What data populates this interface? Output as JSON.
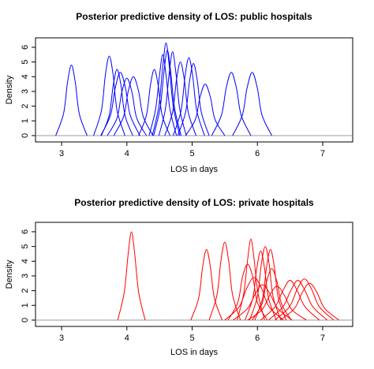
{
  "chart_data": [
    {
      "type": "line",
      "title": "Posterior predictive density of LOS: public hospitals",
      "x_label": "LOS in days",
      "y_label": "Density",
      "xlim": [
        2.6,
        7.46
      ],
      "ylim": [
        -0.43,
        6.64
      ],
      "xticks": [
        3,
        4,
        5,
        6,
        7
      ],
      "yticks": [
        0,
        1,
        2,
        3,
        4,
        5,
        6
      ],
      "series": [
        {
          "color": "#0000ff",
          "x": [
            2.91,
            3.03,
            3.09,
            3.15,
            3.21,
            3.27,
            3.39
          ],
          "values": [
            0,
            1.5,
            3.6,
            4.8,
            3.6,
            1.5,
            0
          ]
        },
        {
          "color": "#0000ff",
          "x": [
            3.49,
            3.61,
            3.67,
            3.73,
            3.79,
            3.85,
            3.97
          ],
          "values": [
            0,
            1.7,
            4.1,
            5.4,
            4.1,
            1.7,
            0
          ]
        },
        {
          "color": "#0000ff",
          "x": [
            3.61,
            3.73,
            3.79,
            3.85,
            3.91,
            3.97,
            4.09
          ],
          "values": [
            0,
            1.4,
            3.4,
            4.5,
            3.4,
            1.4,
            0
          ]
        },
        {
          "color": "#0000ff",
          "x": [
            3.6,
            3.75,
            3.82,
            3.9,
            3.98,
            4.05,
            4.2
          ],
          "values": [
            0,
            1.4,
            3.2,
            4.3,
            3.2,
            1.4,
            0
          ]
        },
        {
          "color": "#0000ff",
          "x": [
            3.7,
            3.85,
            3.92,
            4.0,
            4.08,
            4.15,
            4.3
          ],
          "values": [
            0,
            1.2,
            2.9,
            3.9,
            2.9,
            1.2,
            0
          ]
        },
        {
          "color": "#0000ff",
          "x": [
            3.8,
            3.95,
            4.02,
            4.1,
            4.18,
            4.25,
            4.4
          ],
          "values": [
            0,
            1.3,
            3,
            4,
            3,
            1.3,
            0
          ]
        },
        {
          "color": "#0000ff",
          "x": [
            4.18,
            4.3,
            4.36,
            4.42,
            4.48,
            4.54,
            4.66
          ],
          "values": [
            0,
            1.4,
            3.4,
            4.5,
            3.4,
            1.4,
            0
          ]
        },
        {
          "color": "#0000ff",
          "x": [
            4.34,
            4.44,
            4.5,
            4.55,
            4.6,
            4.66,
            4.76
          ],
          "values": [
            0,
            1.8,
            4.1,
            5.5,
            4.1,
            1.8,
            0
          ]
        },
        {
          "color": "#0000ff",
          "x": [
            4.39,
            4.49,
            4.55,
            4.6,
            4.65,
            4.71,
            4.81
          ],
          "values": [
            0,
            2,
            4.7,
            6.3,
            4.7,
            2,
            0
          ]
        },
        {
          "color": "#0000ff",
          "x": [
            4.41,
            4.51,
            4.57,
            4.62,
            4.67,
            4.73,
            4.83
          ],
          "values": [
            0,
            1.9,
            4.4,
            5.8,
            4.4,
            1.9,
            0
          ]
        },
        {
          "color": "#0000ff",
          "x": [
            4.49,
            4.59,
            4.65,
            4.7,
            4.75,
            4.81,
            4.91
          ],
          "values": [
            0,
            1.8,
            4.3,
            5.7,
            4.3,
            1.8,
            0
          ]
        },
        {
          "color": "#0000ff",
          "x": [
            4.58,
            4.7,
            4.76,
            4.82,
            4.88,
            4.94,
            5.06
          ],
          "values": [
            0,
            1.6,
            3.8,
            5,
            3.8,
            1.6,
            0
          ]
        },
        {
          "color": "#0000ff",
          "x": [
            4.71,
            4.83,
            4.89,
            4.95,
            5.01,
            5.07,
            5.19
          ],
          "values": [
            0,
            1.7,
            4,
            5.3,
            4,
            1.7,
            0
          ]
        },
        {
          "color": "#0000ff",
          "x": [
            4.78,
            4.9,
            4.96,
            5.02,
            5.08,
            5.14,
            5.26
          ],
          "values": [
            0,
            1.6,
            3.7,
            4.9,
            3.7,
            1.6,
            0
          ]
        },
        {
          "color": "#0000ff",
          "x": [
            4.9,
            5.05,
            5.12,
            5.2,
            5.28,
            5.35,
            5.5
          ],
          "values": [
            0,
            1.1,
            2.6,
            3.5,
            2.6,
            1.1,
            0
          ]
        },
        {
          "color": "#0000ff",
          "x": [
            5.3,
            5.45,
            5.52,
            5.6,
            5.68,
            5.75,
            5.9
          ],
          "values": [
            0,
            1.4,
            3.2,
            4.3,
            3.2,
            1.4,
            0
          ]
        },
        {
          "color": "#0000ff",
          "x": [
            5.62,
            5.77,
            5.84,
            5.92,
            6,
            6.07,
            6.22
          ],
          "values": [
            0,
            1.4,
            3.2,
            4.3,
            3.2,
            1.4,
            0
          ]
        }
      ]
    },
    {
      "type": "line",
      "title": "Posterior predictive density of LOS: private hospitals",
      "x_label": "LOS in days",
      "y_label": "Density",
      "xlim": [
        2.6,
        7.46
      ],
      "ylim": [
        -0.43,
        6.64
      ],
      "xticks": [
        3,
        4,
        5,
        6,
        7
      ],
      "yticks": [
        0,
        1,
        2,
        3,
        4,
        5,
        6
      ],
      "series": [
        {
          "color": "#ff0000",
          "x": [
            3.86,
            3.96,
            4.02,
            4.07,
            4.12,
            4.18,
            4.28
          ],
          "values": [
            0,
            1.9,
            4.5,
            6,
            4.5,
            1.9,
            0
          ]
        },
        {
          "color": "#ff0000",
          "x": [
            4.98,
            5.1,
            5.16,
            5.22,
            5.28,
            5.34,
            5.46
          ],
          "values": [
            0,
            1.5,
            3.6,
            4.8,
            3.6,
            1.5,
            0
          ]
        },
        {
          "color": "#ff0000",
          "x": [
            5.26,
            5.38,
            5.44,
            5.5,
            5.56,
            5.62,
            5.74
          ],
          "values": [
            0,
            1.7,
            4,
            5.3,
            4,
            1.7,
            0
          ]
        },
        {
          "color": "#ff0000",
          "x": [
            5.69,
            5.79,
            5.85,
            5.9,
            5.95,
            6.01,
            6.11
          ],
          "values": [
            0,
            1.8,
            4.1,
            5.5,
            4.1,
            1.8,
            0
          ]
        },
        {
          "color": "#ff0000",
          "x": [
            5.55,
            5.7,
            5.77,
            5.85,
            5.93,
            6,
            6.15
          ],
          "values": [
            0,
            1.2,
            2.9,
            3.8,
            2.9,
            1.2,
            0
          ]
        },
        {
          "color": "#ff0000",
          "x": [
            5.5,
            5.72,
            5.84,
            5.95,
            6.06,
            6.18,
            6.4
          ],
          "values": [
            0,
            0.9,
            2.2,
            2.9,
            2.2,
            0.9,
            0
          ]
        },
        {
          "color": "#ff0000",
          "x": [
            5.81,
            5.93,
            5.99,
            6.05,
            6.11,
            6.17,
            6.29
          ],
          "values": [
            0,
            1.5,
            3.5,
            4.7,
            3.5,
            1.5,
            0
          ]
        },
        {
          "color": "#ff0000",
          "x": [
            5.88,
            6,
            6.06,
            6.12,
            6.18,
            6.24,
            6.36
          ],
          "values": [
            0,
            1.6,
            3.8,
            5,
            3.8,
            1.6,
            0
          ]
        },
        {
          "color": "#ff0000",
          "x": [
            5.96,
            6.08,
            6.14,
            6.2,
            6.26,
            6.32,
            6.44
          ],
          "values": [
            0,
            1.5,
            3.6,
            4.8,
            3.6,
            1.5,
            0
          ]
        },
        {
          "color": "#ff0000",
          "x": [
            5.63,
            5.85,
            5.97,
            6.08,
            6.19,
            6.31,
            6.53
          ],
          "values": [
            0,
            0.8,
            1.8,
            2.4,
            1.8,
            0.8,
            0
          ]
        },
        {
          "color": "#ff0000",
          "x": [
            5.92,
            6.07,
            6.14,
            6.22,
            6.3,
            6.37,
            6.52
          ],
          "values": [
            0,
            1.1,
            2.6,
            3.5,
            2.6,
            1.1,
            0
          ]
        },
        {
          "color": "#ff0000",
          "x": [
            5.85,
            6.07,
            6.19,
            6.3,
            6.41,
            6.53,
            6.75
          ],
          "values": [
            0,
            0.7,
            1.7,
            2.3,
            1.7,
            0.7,
            0
          ]
        },
        {
          "color": "#ff0000",
          "x": [
            6.05,
            6.27,
            6.39,
            6.5,
            6.61,
            6.73,
            6.95
          ],
          "values": [
            0,
            0.9,
            2,
            2.7,
            2,
            0.9,
            0
          ]
        },
        {
          "color": "#ff0000",
          "x": [
            6.17,
            6.39,
            6.51,
            6.62,
            6.73,
            6.85,
            7.07
          ],
          "values": [
            0,
            0.9,
            2,
            2.7,
            2,
            0.9,
            0
          ]
        },
        {
          "color": "#ff0000",
          "x": [
            6.27,
            6.49,
            6.61,
            6.72,
            6.83,
            6.95,
            7.17
          ],
          "values": [
            0,
            0.9,
            2.1,
            2.8,
            2.1,
            0.9,
            0
          ]
        },
        {
          "color": "#ff0000",
          "x": [
            6.35,
            6.57,
            6.69,
            6.8,
            6.91,
            7.03,
            7.25
          ],
          "values": [
            0,
            0.8,
            1.9,
            2.5,
            1.9,
            0.8,
            0
          ]
        }
      ]
    }
  ]
}
